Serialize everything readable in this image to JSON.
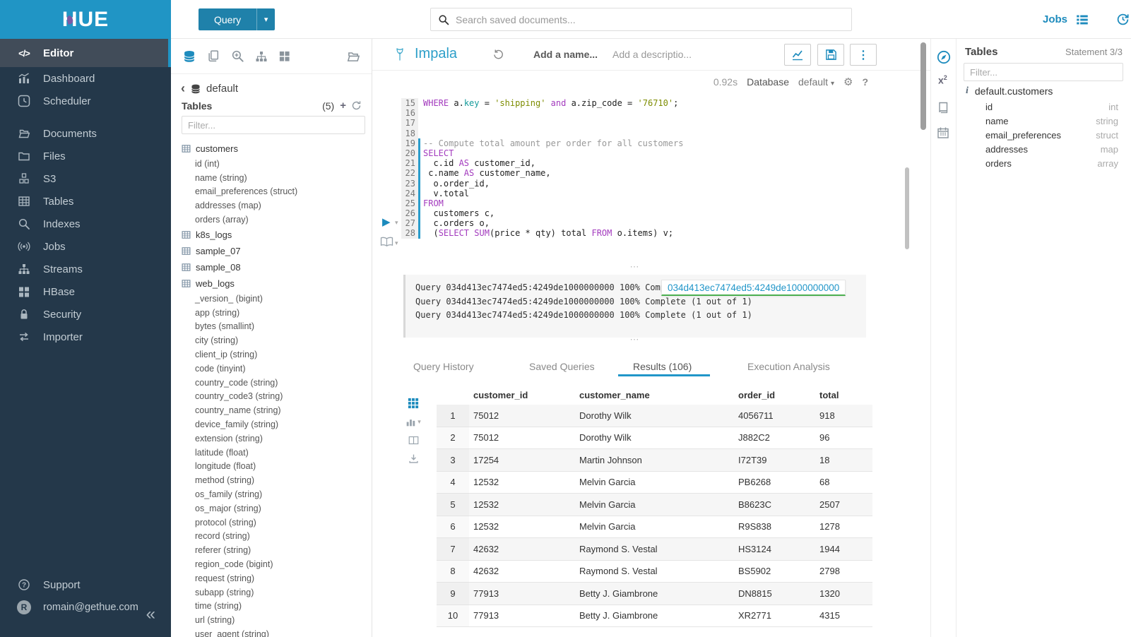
{
  "colors": {
    "brand_blue": "#2095c5",
    "accent_blue": "#1d8bbd",
    "sidebar_bg": "#24384a",
    "sql_keyword": "#a33bbe",
    "sql_string": "#7d8c00",
    "sql_comment": "#999999",
    "sql_builtin": "#169b9b",
    "tab_underline": "#2196c9",
    "query_id_underline": "#4caf50"
  },
  "glyphs": {
    "caret_down": "▾",
    "chevron_left": "‹",
    "collapse": "«",
    "ellipsis_v": "⋮",
    "gear": "⚙",
    "help": "?",
    "play": "▶",
    "handle_dots": "⋯",
    "plus": "+",
    "info": "i"
  },
  "topbar": {
    "query_button": "Query",
    "search_placeholder": "Search saved documents...",
    "jobs_label": "Jobs"
  },
  "sidebar": {
    "logo_text": "HUE",
    "items": [
      {
        "label": "Editor",
        "icon": "code-icon",
        "active": true
      },
      {
        "label": "Dashboard",
        "icon": "dashboard-icon"
      },
      {
        "label": "Scheduler",
        "icon": "scheduler-icon"
      },
      {
        "label": "Documents",
        "icon": "documents-icon",
        "gap_before": true
      },
      {
        "label": "Files",
        "icon": "files-icon"
      },
      {
        "label": "S3",
        "icon": "s3-icon"
      },
      {
        "label": "Tables",
        "icon": "tables-icon"
      },
      {
        "label": "Indexes",
        "icon": "indexes-icon"
      },
      {
        "label": "Jobs",
        "icon": "jobs-icon"
      },
      {
        "label": "Streams",
        "icon": "streams-icon"
      },
      {
        "label": "HBase",
        "icon": "hbase-icon"
      },
      {
        "label": "Security",
        "icon": "security-icon"
      },
      {
        "label": "Importer",
        "icon": "importer-icon"
      }
    ],
    "footer": {
      "support_label": "Support",
      "user_email": "romain@gethue.com",
      "avatar_letter": "R"
    }
  },
  "left_assist": {
    "breadcrumb": "default",
    "tables_header": "Tables",
    "tables_count": "(5)",
    "filter_placeholder": "Filter...",
    "tree": [
      {
        "name": "customers",
        "columns": [
          "id (int)",
          "name (string)",
          "email_preferences (struct)",
          "addresses (map)",
          "orders (array)"
        ]
      },
      {
        "name": "k8s_logs",
        "columns": []
      },
      {
        "name": "sample_07",
        "columns": []
      },
      {
        "name": "sample_08",
        "columns": []
      },
      {
        "name": "web_logs",
        "columns": [
          "_version_ (bigint)",
          "app (string)",
          "bytes (smallint)",
          "city (string)",
          "client_ip (string)",
          "code (tinyint)",
          "country_code (string)",
          "country_code3 (string)",
          "country_name (string)",
          "device_family (string)",
          "extension (string)",
          "latitude (float)",
          "longitude (float)",
          "method (string)",
          "os_family (string)",
          "os_major (string)",
          "protocol (string)",
          "record (string)",
          "referer (string)",
          "region_code (bigint)",
          "request (string)",
          "subapp (string)",
          "time (string)",
          "url (string)",
          "user_agent (string)"
        ]
      }
    ]
  },
  "editor": {
    "engine": "Impala",
    "name_placeholder": "Add a name...",
    "description_placeholder": "Add a descriptio...",
    "execution_time": "0.92s",
    "database_label": "Database",
    "database_value": "default",
    "code_lines": [
      {
        "no": 15,
        "active": false,
        "tokens": [
          [
            "kw",
            "WHERE"
          ],
          [
            "pl",
            " a."
          ],
          [
            "res",
            "key"
          ],
          [
            "pl",
            " = "
          ],
          [
            "str",
            "'shipping'"
          ],
          [
            "pl",
            " "
          ],
          [
            "kw",
            "and"
          ],
          [
            "pl",
            " a.zip_code = "
          ],
          [
            "str",
            "'76710'"
          ],
          [
            "pl",
            ";"
          ]
        ]
      },
      {
        "no": 16,
        "active": false,
        "tokens": []
      },
      {
        "no": 17,
        "active": false,
        "tokens": []
      },
      {
        "no": 18,
        "active": false,
        "tokens": []
      },
      {
        "no": 19,
        "active": true,
        "tokens": [
          [
            "com",
            "-- Compute total amount per order for all customers"
          ]
        ]
      },
      {
        "no": 20,
        "active": true,
        "tokens": [
          [
            "kw",
            "SELECT"
          ]
        ]
      },
      {
        "no": 21,
        "active": true,
        "tokens": [
          [
            "pl",
            "  c.id "
          ],
          [
            "kw",
            "AS"
          ],
          [
            "pl",
            " customer_id,"
          ]
        ]
      },
      {
        "no": 22,
        "active": true,
        "tokens": [
          [
            "pl",
            " c.name "
          ],
          [
            "kw",
            "AS"
          ],
          [
            "pl",
            " customer_name,"
          ]
        ]
      },
      {
        "no": 23,
        "active": true,
        "tokens": [
          [
            "pl",
            "  o.order_id,"
          ]
        ]
      },
      {
        "no": 24,
        "active": true,
        "tokens": [
          [
            "pl",
            "  v.total"
          ]
        ]
      },
      {
        "no": 25,
        "active": true,
        "tokens": [
          [
            "kw",
            "FROM"
          ]
        ]
      },
      {
        "no": 26,
        "active": true,
        "tokens": [
          [
            "pl",
            "  customers c,"
          ]
        ]
      },
      {
        "no": 27,
        "active": true,
        "tokens": [
          [
            "pl",
            "  c.orders o,"
          ]
        ]
      },
      {
        "no": 28,
        "active": true,
        "tokens": [
          [
            "pl",
            "  ("
          ],
          [
            "kw",
            "SELECT"
          ],
          [
            "pl",
            " "
          ],
          [
            "kw",
            "SUM"
          ],
          [
            "pl",
            "(price * qty) total "
          ],
          [
            "kw",
            "FROM"
          ],
          [
            "pl",
            " o.items) v;"
          ]
        ]
      }
    ],
    "log_lines": [
      "Query 034d413ec7474ed5:4249de1000000000 100% Complete (1 out of 1)",
      "Query 034d413ec7474ed5:4249de1000000000 100% Complete (1 out of 1)",
      "Query 034d413ec7474ed5:4249de1000000000 100% Complete (1 out of 1)"
    ],
    "query_id_overlay": "034d413ec7474ed5:4249de1000000000",
    "tabs": [
      {
        "label": "Query History",
        "active": false
      },
      {
        "label": "Saved Queries",
        "active": false
      },
      {
        "label": "Results (106)",
        "active": true
      },
      {
        "label": "Execution Analysis",
        "active": false
      }
    ],
    "results": {
      "headers": [
        "customer_id",
        "customer_name",
        "order_id",
        "total"
      ],
      "rows": [
        [
          "1",
          "75012",
          "Dorothy Wilk",
          "4056711",
          "918"
        ],
        [
          "2",
          "75012",
          "Dorothy Wilk",
          "J882C2",
          "96"
        ],
        [
          "3",
          "17254",
          "Martin Johnson",
          "I72T39",
          "18"
        ],
        [
          "4",
          "12532",
          "Melvin Garcia",
          "PB6268",
          "68"
        ],
        [
          "5",
          "12532",
          "Melvin Garcia",
          "B8623C",
          "2507"
        ],
        [
          "6",
          "12532",
          "Melvin Garcia",
          "R9S838",
          "1278"
        ],
        [
          "7",
          "42632",
          "Raymond S. Vestal",
          "HS3124",
          "1944"
        ],
        [
          "8",
          "42632",
          "Raymond S. Vestal",
          "BS5902",
          "2798"
        ],
        [
          "9",
          "77913",
          "Betty J. Giambrone",
          "DN8815",
          "1320"
        ],
        [
          "10",
          "77913",
          "Betty J. Giambrone",
          "XR2771",
          "4315"
        ]
      ]
    }
  },
  "right_assist": {
    "title": "Tables",
    "statement": "Statement 3/3",
    "filter_placeholder": "Filter...",
    "table_name": "default.customers",
    "columns": [
      {
        "name": "id",
        "type": "int"
      },
      {
        "name": "name",
        "type": "string"
      },
      {
        "name": "email_preferences",
        "type": "struct"
      },
      {
        "name": "addresses",
        "type": "map"
      },
      {
        "name": "orders",
        "type": "array"
      }
    ]
  }
}
